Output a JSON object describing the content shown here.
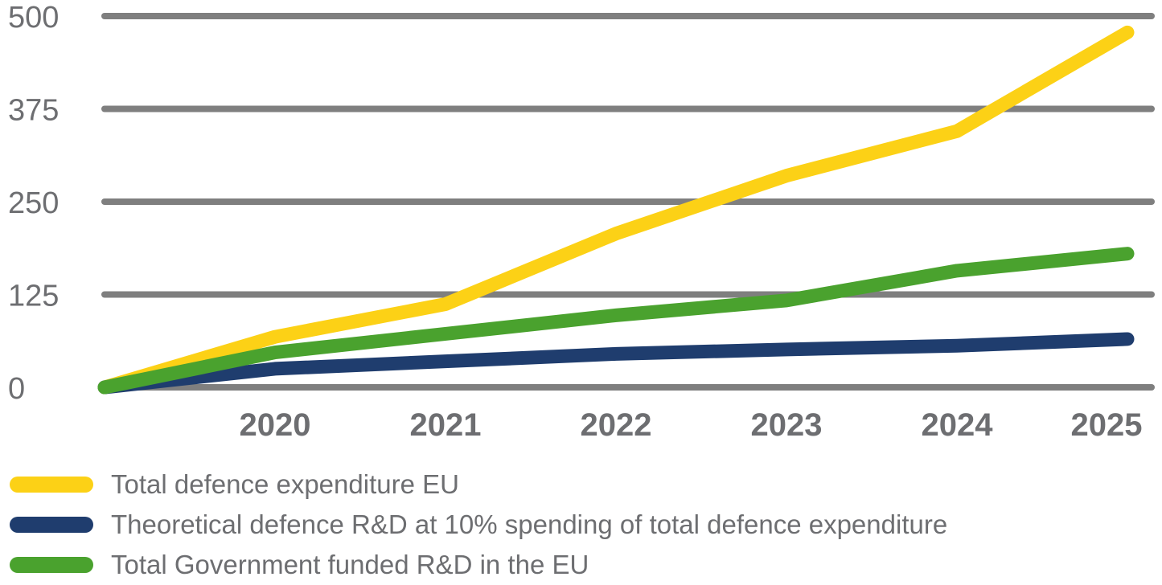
{
  "chart_data": {
    "type": "line",
    "title": "",
    "xlabel": "",
    "ylabel": "",
    "x": [
      "",
      "2020",
      "2021",
      "2022",
      "2023",
      "2024",
      "2025"
    ],
    "ylim": [
      0,
      500
    ],
    "yticks": [
      "0",
      "125",
      "250",
      "375",
      "500"
    ],
    "grid": true,
    "legend_position": "bottom",
    "series": [
      {
        "name": "Total defence expenditure EU",
        "color": "#fcd116",
        "values": [
          0,
          68,
          112,
          207,
          285,
          345,
          478
        ]
      },
      {
        "name": "Theoretical defence R&D at 10% spending of total defence expenditure",
        "color": "#1f3d6e",
        "values": [
          0,
          25,
          35,
          45,
          51,
          56,
          65
        ]
      },
      {
        "name": "Total Government funded R&D in the EU",
        "color": "#4aa22e",
        "values": [
          0,
          47,
          72,
          97,
          117,
          157,
          180
        ]
      }
    ]
  },
  "colors": {
    "grid": "#7f7f7f",
    "text": "#6d6e71"
  }
}
